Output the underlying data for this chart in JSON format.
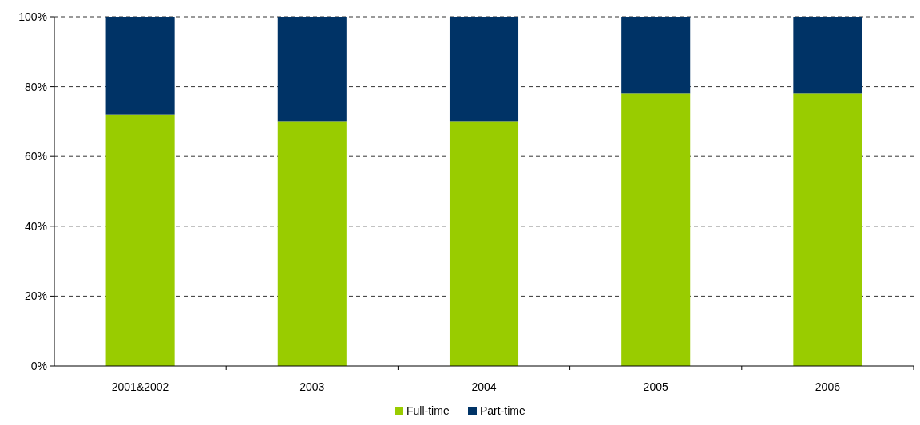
{
  "chart_data": {
    "type": "bar",
    "stacked": true,
    "categories": [
      "2001&2002",
      "2003",
      "2004",
      "2005",
      "2006"
    ],
    "series": [
      {
        "name": "Full-time",
        "color": "#99cc00",
        "values": [
          72,
          70,
          70,
          78,
          78
        ]
      },
      {
        "name": "Part-time",
        "color": "#003366",
        "values": [
          28,
          30,
          30,
          22,
          22
        ]
      }
    ],
    "ylim": [
      0,
      100
    ],
    "yticks": [
      {
        "value": 0,
        "label": "0%"
      },
      {
        "value": 20,
        "label": "20%"
      },
      {
        "value": 40,
        "label": "40%"
      },
      {
        "value": 60,
        "label": "60%"
      },
      {
        "value": 80,
        "label": "80%"
      },
      {
        "value": 100,
        "label": "100%"
      }
    ],
    "grid": "y",
    "legend": "bottom"
  }
}
